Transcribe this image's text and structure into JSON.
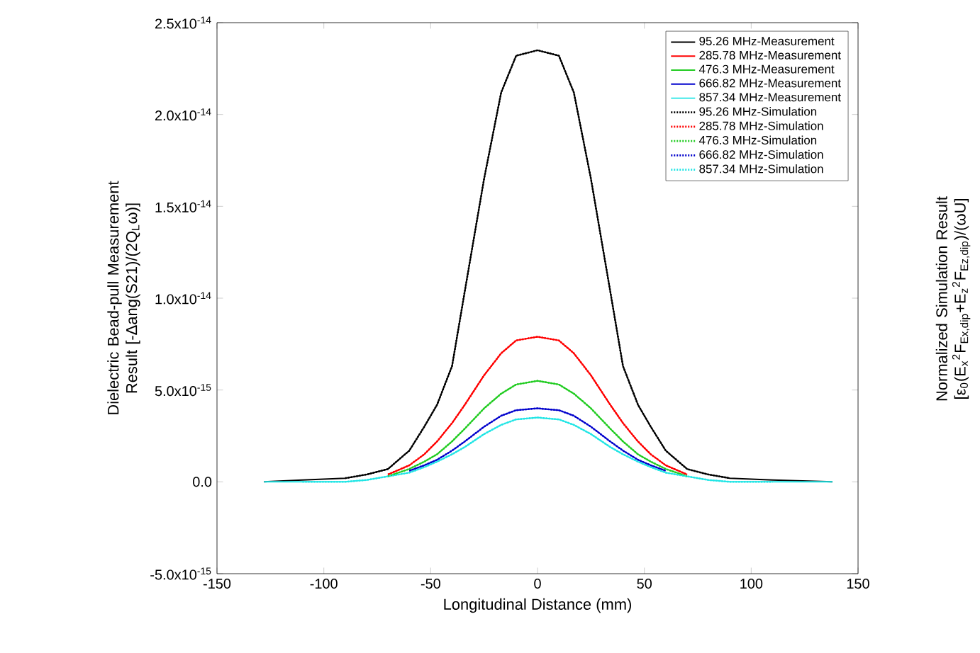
{
  "chart_data": {
    "type": "line",
    "xlabel": "Longitudinal Distance (mm)",
    "ylabel": "Dielectric Bead-pull Measurement Result [-Δang(S21)/(2Q$_{L}$ω)]",
    "y2label": "Normalized Simulation Result [ε$_{0}$(E$_{x}$$^{2}$F$_{Ex,dip}$+E$_{z}$$^{2}$F$_{Ez,dip}$)/(ωU]",
    "xlim": [
      -150,
      150
    ],
    "xticks": [
      -150,
      -100,
      -50,
      0,
      50,
      100,
      150
    ],
    "ylim": [
      -5e-15,
      2.5e-14
    ],
    "yticks": [
      {
        "value": -5e-15,
        "label": "-5.0x10$^{-15}$"
      },
      {
        "value": 0,
        "label": "0.0"
      },
      {
        "value": 5e-15,
        "label": "5.0x10$^{-15}$"
      },
      {
        "value": 1e-14,
        "label": "1.0x10$^{-14}$"
      },
      {
        "value": 1.5e-14,
        "label": "1.5x10$^{-14}$"
      },
      {
        "value": 2e-14,
        "label": "2.0x10$^{-14}$"
      },
      {
        "value": 2.5e-14,
        "label": "2.5x10$^{-14}$"
      }
    ],
    "legend": "top right",
    "marker": "none",
    "x": [
      -128,
      -110,
      -90,
      -80,
      -70,
      -60,
      -53,
      -47,
      -40,
      -34,
      -25,
      -17,
      -10,
      0,
      10,
      17,
      25,
      34,
      40,
      47,
      53,
      60,
      70,
      80,
      90,
      110,
      138
    ],
    "series": [
      {
        "name": "95.26 MHz-Measurement",
        "color": "#000000",
        "line_style": "solid",
        "values": [
          0,
          1e-16,
          2e-16,
          4e-16,
          7e-16,
          1.7e-15,
          3e-15,
          4.2e-15,
          6.3e-15,
          1.04e-14,
          1.65e-14,
          2.12e-14,
          2.32e-14,
          2.35e-14,
          2.32e-14,
          2.12e-14,
          1.65e-14,
          1.04e-14,
          6.3e-15,
          4.2e-15,
          3e-15,
          1.7e-15,
          7e-16,
          4e-16,
          2e-16,
          1e-16,
          0
        ]
      },
      {
        "name": "285.78 MHz-Measurement",
        "color": "#ff0000",
        "line_style": "solid",
        "values": [
          null,
          null,
          null,
          null,
          4e-16,
          9e-16,
          1.5e-15,
          2.2e-15,
          3.2e-15,
          4.2e-15,
          5.8e-15,
          7e-15,
          7.7e-15,
          7.9e-15,
          7.7e-15,
          7e-15,
          5.8e-15,
          4.2e-15,
          3.2e-15,
          2.2e-15,
          1.5e-15,
          9e-16,
          4e-16,
          null,
          null,
          null,
          null
        ]
      },
      {
        "name": "476.3 MHz-Measurement",
        "color": "#22cc22",
        "line_style": "solid",
        "values": [
          null,
          null,
          null,
          null,
          3e-16,
          7e-16,
          1.1e-15,
          1.5e-15,
          2.2e-15,
          2.9e-15,
          4e-15,
          4.8e-15,
          5.3e-15,
          5.5e-15,
          5.3e-15,
          4.8e-15,
          4e-15,
          2.9e-15,
          2.2e-15,
          1.5e-15,
          1.1e-15,
          7e-16,
          3e-16,
          null,
          null,
          null,
          null
        ]
      },
      {
        "name": "666.82 MHz-Measurement",
        "color": "#0000cc",
        "line_style": "solid",
        "values": [
          null,
          null,
          null,
          null,
          null,
          6e-16,
          9e-16,
          1.2e-15,
          1.7e-15,
          2.2e-15,
          3e-15,
          3.6e-15,
          3.9e-15,
          4e-15,
          3.9e-15,
          3.6e-15,
          3e-15,
          2.2e-15,
          1.7e-15,
          1.2e-15,
          9e-16,
          6e-16,
          null,
          null,
          null,
          null,
          null
        ]
      },
      {
        "name": "857.34 MHz-Measurement",
        "color": "#22e5e5",
        "line_style": "solid",
        "values": [
          0,
          0,
          0,
          1e-16,
          3e-16,
          5e-16,
          8e-16,
          1.1e-15,
          1.5e-15,
          1.9e-15,
          2.6e-15,
          3.1e-15,
          3.4e-15,
          3.5e-15,
          3.4e-15,
          3.1e-15,
          2.6e-15,
          1.9e-15,
          1.5e-15,
          1.1e-15,
          8e-16,
          5e-16,
          3e-16,
          1e-16,
          0,
          0,
          0
        ]
      },
      {
        "name": "95.26 MHz-Simulation",
        "color": "#000000",
        "line_style": "dotted",
        "values": [
          null,
          null,
          2e-16,
          4e-16,
          7e-16,
          1.7e-15,
          3e-15,
          4.2e-15,
          6.3e-15,
          1.04e-14,
          1.65e-14,
          2.12e-14,
          2.32e-14,
          2.35e-14,
          2.32e-14,
          2.12e-14,
          1.65e-14,
          1.04e-14,
          6.3e-15,
          4.2e-15,
          3e-15,
          1.7e-15,
          7e-16,
          4e-16,
          2e-16,
          null,
          null
        ]
      },
      {
        "name": "285.78 MHz-Simulation",
        "color": "#ff0000",
        "line_style": "dotted",
        "values": [
          null,
          null,
          null,
          null,
          4e-16,
          9e-16,
          1.5e-15,
          2.2e-15,
          3.2e-15,
          4.2e-15,
          5.8e-15,
          7e-15,
          7.7e-15,
          7.9e-15,
          7.7e-15,
          7e-15,
          5.8e-15,
          4.2e-15,
          3.2e-15,
          2.2e-15,
          1.5e-15,
          9e-16,
          4e-16,
          null,
          null,
          null,
          null
        ]
      },
      {
        "name": "476.3 MHz-Simulation",
        "color": "#22cc22",
        "line_style": "dotted",
        "values": [
          null,
          null,
          null,
          null,
          3e-16,
          7e-16,
          1.1e-15,
          1.5e-15,
          2.2e-15,
          2.9e-15,
          4e-15,
          4.8e-15,
          5.3e-15,
          5.5e-15,
          5.3e-15,
          4.8e-15,
          4e-15,
          2.9e-15,
          2.2e-15,
          1.5e-15,
          1.1e-15,
          7e-16,
          3e-16,
          null,
          null,
          null,
          null
        ]
      },
      {
        "name": "666.82 MHz-Simulation",
        "color": "#0000cc",
        "line_style": "dotted",
        "values": [
          null,
          null,
          null,
          null,
          null,
          6e-16,
          9e-16,
          1.2e-15,
          1.7e-15,
          2.2e-15,
          3e-15,
          3.6e-15,
          3.9e-15,
          4e-15,
          3.9e-15,
          3.6e-15,
          3e-15,
          2.2e-15,
          1.7e-15,
          1.2e-15,
          9e-16,
          6e-16,
          null,
          null,
          null,
          null,
          null
        ]
      },
      {
        "name": "857.34 MHz-Simulation",
        "color": "#22e5e5",
        "line_style": "dotted",
        "values": [
          null,
          0,
          0,
          1e-16,
          3e-16,
          5e-16,
          8e-16,
          1.1e-15,
          1.5e-15,
          1.9e-15,
          2.6e-15,
          3.1e-15,
          3.4e-15,
          3.5e-15,
          3.4e-15,
          3.1e-15,
          2.6e-15,
          1.9e-15,
          1.5e-15,
          1.1e-15,
          8e-16,
          5e-16,
          3e-16,
          1e-16,
          0,
          0,
          null
        ]
      }
    ]
  }
}
